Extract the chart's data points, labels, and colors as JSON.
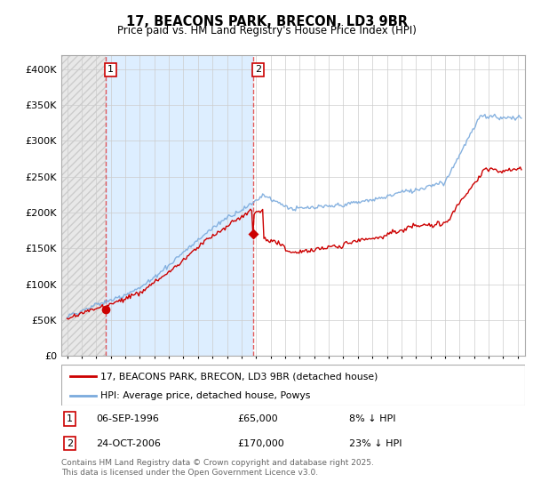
{
  "title": "17, BEACONS PARK, BRECON, LD3 9BR",
  "subtitle": "Price paid vs. HM Land Registry's House Price Index (HPI)",
  "ylim": [
    0,
    420000
  ],
  "yticks": [
    0,
    50000,
    100000,
    150000,
    200000,
    250000,
    300000,
    350000,
    400000
  ],
  "ytick_labels": [
    "£0",
    "£50K",
    "£100K",
    "£150K",
    "£200K",
    "£250K",
    "£300K",
    "£350K",
    "£400K"
  ],
  "xmin": 1993.6,
  "xmax": 2025.5,
  "legend_entries": [
    "17, BEACONS PARK, BRECON, LD3 9BR (detached house)",
    "HPI: Average price, detached house, Powys"
  ],
  "legend_colors": [
    "#cc0000",
    "#7aaadd"
  ],
  "sale1_date": 1996.68,
  "sale1_price": 65000,
  "sale2_date": 2006.81,
  "sale2_price": 170000,
  "footnote": "Contains HM Land Registry data © Crown copyright and database right 2025.\nThis data is licensed under the Open Government Licence v3.0.",
  "grid_color": "#cccccc",
  "hatch_bg_color": "#d8e8f0",
  "hatch_left_color": "#e0e0e0"
}
